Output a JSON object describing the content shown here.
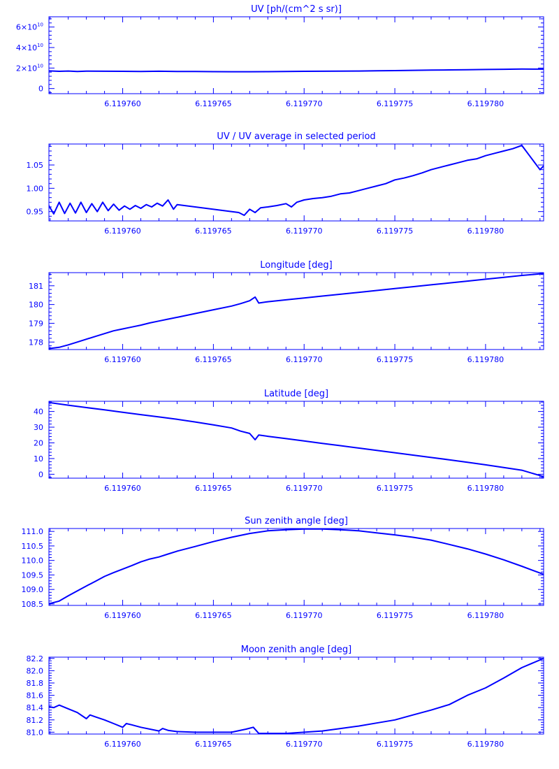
{
  "accent_color": "#0000ff",
  "chart_data": [
    {
      "type": "line",
      "title": "UV [ph/(cm^2 s sr)]",
      "xlim": [
        6.119755935,
        6.1197832
      ],
      "ylim": [
        -5000000000,
        70000000000
      ],
      "xticks": [
        6.11976,
        6.119765,
        6.11977,
        6.119775,
        6.11978
      ],
      "xtick_labels": [
        "6.119760",
        "6.119765",
        "6.119770",
        "6.119775",
        "6.119780"
      ],
      "yticks": [
        0,
        20000000000,
        40000000000,
        60000000000
      ],
      "ytick_labels": [
        {
          "base": "0",
          "exp": ""
        },
        {
          "base": "2×10",
          "exp": "10"
        },
        {
          "base": "4×10",
          "exp": "10"
        },
        {
          "base": "6×10",
          "exp": "10"
        }
      ],
      "grid": false,
      "series": [
        {
          "x": [
            6.1197559,
            6.1197565,
            6.119757,
            6.1197575,
            6.119758,
            6.119759,
            6.11976,
            6.119761,
            6.119762,
            6.119763,
            6.119764,
            6.119765,
            6.119766,
            6.119767,
            6.119768,
            6.119769,
            6.11977,
            6.119771,
            6.119772,
            6.119773,
            6.119774,
            6.119775,
            6.119776,
            6.119777,
            6.119778,
            6.119779,
            6.11978,
            6.119781,
            6.119782,
            6.1197832
          ],
          "y": [
            17300000000,
            16800000000,
            17100000000,
            16700000000,
            17000000000,
            16900000000,
            16800000000,
            16700000000,
            16900000000,
            16600000000,
            16700000000,
            16500000000,
            16400000000,
            16400000000,
            16500000000,
            16700000000,
            16800000000,
            16900000000,
            17000000000,
            17100000000,
            17300000000,
            17500000000,
            17800000000,
            18000000000,
            18200000000,
            18400000000,
            18600000000,
            18800000000,
            19000000000,
            18900000000
          ]
        }
      ]
    },
    {
      "type": "line",
      "title": "UV / UV average in selected period",
      "xlim": [
        6.119755935,
        6.1197832
      ],
      "ylim": [
        0.93,
        1.095
      ],
      "xticks": [
        6.11976,
        6.119765,
        6.11977,
        6.119775,
        6.11978
      ],
      "xtick_labels": [
        "6.119760",
        "6.119765",
        "6.119770",
        "6.119775",
        "6.119780"
      ],
      "yticks": [
        0.95,
        1.0,
        1.05
      ],
      "ytick_labels": [
        {
          "base": "0.95",
          "exp": ""
        },
        {
          "base": "1.00",
          "exp": ""
        },
        {
          "base": "1.05",
          "exp": ""
        }
      ],
      "grid": false,
      "series": [
        {
          "x": [
            6.1197559,
            6.1197562,
            6.1197565,
            6.1197568,
            6.1197571,
            6.1197574,
            6.1197577,
            6.119758,
            6.1197583,
            6.1197586,
            6.1197589,
            6.1197592,
            6.1197595,
            6.1197598,
            6.1197601,
            6.1197604,
            6.1197607,
            6.119761,
            6.1197613,
            6.1197616,
            6.1197619,
            6.1197622,
            6.1197625,
            6.1197628,
            6.119763,
            6.1197664,
            6.1197667,
            6.119767,
            6.1197673,
            6.1197676,
            6.119768,
            6.1197685,
            6.119769,
            6.1197693,
            6.1197696,
            6.11977,
            6.1197705,
            6.119771,
            6.1197715,
            6.119772,
            6.1197725,
            6.119773,
            6.1197735,
            6.119774,
            6.1197745,
            6.119775,
            6.1197755,
            6.119776,
            6.1197765,
            6.119777,
            6.1197775,
            6.119778,
            6.1197785,
            6.119779,
            6.1197795,
            6.11978,
            6.1197805,
            6.119781,
            6.1197815,
            6.119782,
            6.119783,
            6.1197832
          ],
          "y": [
            0.965,
            0.945,
            0.97,
            0.946,
            0.968,
            0.947,
            0.97,
            0.948,
            0.967,
            0.95,
            0.97,
            0.952,
            0.966,
            0.953,
            0.962,
            0.955,
            0.963,
            0.957,
            0.965,
            0.96,
            0.968,
            0.962,
            0.975,
            0.955,
            0.965,
            0.948,
            0.942,
            0.955,
            0.948,
            0.958,
            0.96,
            0.963,
            0.967,
            0.96,
            0.97,
            0.975,
            0.978,
            0.98,
            0.983,
            0.988,
            0.99,
            0.995,
            1.0,
            1.005,
            1.01,
            1.018,
            1.022,
            1.027,
            1.033,
            1.04,
            1.045,
            1.05,
            1.055,
            1.06,
            1.063,
            1.07,
            1.075,
            1.08,
            1.085,
            1.092,
            1.04,
            1.048
          ]
        }
      ]
    },
    {
      "type": "line",
      "title": "Longitude [deg]",
      "xlim": [
        6.119755935,
        6.1197832
      ],
      "ylim": [
        177.6,
        181.7
      ],
      "xticks": [
        6.11976,
        6.119765,
        6.11977,
        6.119775,
        6.11978
      ],
      "xtick_labels": [
        "6.119760",
        "6.119765",
        "6.119770",
        "6.119775",
        "6.119780"
      ],
      "yticks": [
        178,
        179,
        180,
        181
      ],
      "ytick_labels": [
        {
          "base": "178",
          "exp": ""
        },
        {
          "base": "179",
          "exp": ""
        },
        {
          "base": "180",
          "exp": ""
        },
        {
          "base": "181",
          "exp": ""
        }
      ],
      "grid": false,
      "series": [
        {
          "x": [
            6.1197559,
            6.1197565,
            6.119757,
            6.1197575,
            6.119758,
            6.1197585,
            6.119759,
            6.1197595,
            6.11976,
            6.1197605,
            6.119761,
            6.1197615,
            6.119762,
            6.1197625,
            6.119763,
            6.119764,
            6.119765,
            6.119766,
            6.1197665,
            6.119767,
            6.1197673,
            6.1197675,
            6.119768,
            6.119769,
            6.11977,
            6.119771,
            6.119772,
            6.119773,
            6.119774,
            6.119775,
            6.119776,
            6.119777,
            6.119778,
            6.119779,
            6.11978,
            6.119781,
            6.119782,
            6.1197832
          ],
          "y": [
            177.65,
            177.72,
            177.85,
            178.0,
            178.15,
            178.3,
            178.45,
            178.6,
            178.7,
            178.8,
            178.9,
            179.02,
            179.12,
            179.22,
            179.32,
            179.52,
            179.72,
            179.92,
            180.05,
            180.2,
            180.4,
            180.08,
            180.15,
            180.25,
            180.35,
            180.45,
            180.55,
            180.65,
            180.75,
            180.85,
            180.95,
            181.05,
            181.15,
            181.25,
            181.35,
            181.45,
            181.55,
            181.65
          ]
        }
      ]
    },
    {
      "type": "line",
      "title": "Latitude [deg]",
      "xlim": [
        6.119755935,
        6.1197832
      ],
      "ylim": [
        -2.5,
        46.5
      ],
      "xticks": [
        6.11976,
        6.119765,
        6.11977,
        6.119775,
        6.11978
      ],
      "xtick_labels": [
        "6.119760",
        "6.119765",
        "6.119770",
        "6.119775",
        "6.119780"
      ],
      "yticks": [
        0,
        10,
        20,
        30,
        40
      ],
      "ytick_labels": [
        {
          "base": "0",
          "exp": ""
        },
        {
          "base": "10",
          "exp": ""
        },
        {
          "base": "20",
          "exp": ""
        },
        {
          "base": "30",
          "exp": ""
        },
        {
          "base": "40",
          "exp": ""
        }
      ],
      "grid": false,
      "series": [
        {
          "x": [
            6.1197559,
            6.119757,
            6.119758,
            6.119759,
            6.11976,
            6.119761,
            6.119762,
            6.119763,
            6.119764,
            6.119765,
            6.119766,
            6.1197665,
            6.119767,
            6.1197673,
            6.1197675,
            6.119768,
            6.119769,
            6.11977,
            6.119771,
            6.119772,
            6.119773,
            6.119774,
            6.119775,
            6.119776,
            6.119777,
            6.119778,
            6.119779,
            6.11978,
            6.119781,
            6.119782,
            6.1197832
          ],
          "y": [
            45.8,
            44.0,
            42.5,
            41.0,
            39.5,
            38.0,
            36.5,
            35.0,
            33.3,
            31.5,
            29.5,
            27.5,
            26.0,
            22.0,
            25.0,
            24.2,
            22.7,
            21.2,
            19.7,
            18.2,
            16.7,
            15.2,
            13.7,
            12.2,
            10.7,
            9.2,
            7.6,
            6.0,
            4.3,
            2.6,
            -1.5
          ]
        }
      ]
    },
    {
      "type": "line",
      "title": "Sun zenith angle [deg]",
      "xlim": [
        6.119755935,
        6.1197832
      ],
      "ylim": [
        108.45,
        111.1
      ],
      "xticks": [
        6.11976,
        6.119765,
        6.11977,
        6.119775,
        6.11978
      ],
      "xtick_labels": [
        "6.119760",
        "6.119765",
        "6.119770",
        "6.119775",
        "6.119780"
      ],
      "yticks": [
        108.5,
        109.0,
        109.5,
        110.0,
        110.5,
        111.0
      ],
      "ytick_labels": [
        {
          "base": "108.5",
          "exp": ""
        },
        {
          "base": "109.0",
          "exp": ""
        },
        {
          "base": "109.5",
          "exp": ""
        },
        {
          "base": "110.0",
          "exp": ""
        },
        {
          "base": "110.5",
          "exp": ""
        },
        {
          "base": "111.0",
          "exp": ""
        }
      ],
      "grid": false,
      "series": [
        {
          "x": [
            6.1197559,
            6.1197565,
            6.119757,
            6.1197575,
            6.119758,
            6.1197585,
            6.119759,
            6.1197595,
            6.11976,
            6.1197605,
            6.119761,
            6.1197615,
            6.119762,
            6.1197625,
            6.119763,
            6.119764,
            6.119765,
            6.119766,
            6.119767,
            6.119768,
            6.119769,
            6.11977,
            6.119771,
            6.119772,
            6.119773,
            6.119774,
            6.119775,
            6.119776,
            6.119777,
            6.119778,
            6.119779,
            6.11978,
            6.119781,
            6.119782,
            6.1197832
          ],
          "y": [
            108.5,
            108.6,
            108.78,
            108.95,
            109.12,
            109.28,
            109.45,
            109.58,
            109.7,
            109.82,
            109.95,
            110.05,
            110.12,
            110.22,
            110.32,
            110.48,
            110.65,
            110.8,
            110.93,
            111.02,
            111.06,
            111.08,
            111.08,
            111.06,
            111.02,
            110.95,
            110.88,
            110.8,
            110.7,
            110.55,
            110.4,
            110.22,
            110.02,
            109.8,
            109.52
          ]
        }
      ]
    },
    {
      "type": "line",
      "title": "Moon zenith angle [deg]",
      "xlim": [
        6.119755935,
        6.1197832
      ],
      "ylim": [
        80.97,
        82.22
      ],
      "xticks": [
        6.11976,
        6.119765,
        6.11977,
        6.119775,
        6.11978
      ],
      "xtick_labels": [
        "6.119760",
        "6.119765",
        "6.119770",
        "6.119775",
        "6.119780"
      ],
      "yticks": [
        81.0,
        81.2,
        81.4,
        81.6,
        81.8,
        82.0,
        82.2
      ],
      "ytick_labels": [
        {
          "base": "81.0",
          "exp": ""
        },
        {
          "base": "81.2",
          "exp": ""
        },
        {
          "base": "81.4",
          "exp": ""
        },
        {
          "base": "81.6",
          "exp": ""
        },
        {
          "base": "81.8",
          "exp": ""
        },
        {
          "base": "82.0",
          "exp": ""
        },
        {
          "base": "82.2",
          "exp": ""
        }
      ],
      "grid": false,
      "series": [
        {
          "x": [
            6.1197559,
            6.1197562,
            6.1197565,
            6.119757,
            6.1197575,
            6.119758,
            6.1197582,
            6.1197585,
            6.119759,
            6.1197595,
            6.11976,
            6.1197602,
            6.1197605,
            6.119761,
            6.119762,
            6.1197622,
            6.1197625,
            6.119763,
            6.119764,
            6.119765,
            6.119766,
            6.1197668,
            6.1197672,
            6.1197675,
            6.119768,
            6.119769,
            6.11977,
            6.119771,
            6.119772,
            6.119773,
            6.119774,
            6.119775,
            6.119776,
            6.119777,
            6.119778,
            6.119779,
            6.11978,
            6.119781,
            6.119782,
            6.1197832
          ],
          "y": [
            81.42,
            81.4,
            81.44,
            81.38,
            81.32,
            81.22,
            81.28,
            81.25,
            81.2,
            81.14,
            81.08,
            81.14,
            81.12,
            81.08,
            81.02,
            81.06,
            81.03,
            81.01,
            81.0,
            81.0,
            81.0,
            81.05,
            81.08,
            80.98,
            80.98,
            80.98,
            81.0,
            81.02,
            81.06,
            81.1,
            81.15,
            81.2,
            81.28,
            81.36,
            81.45,
            81.6,
            81.72,
            81.88,
            82.05,
            82.2
          ]
        }
      ]
    }
  ]
}
